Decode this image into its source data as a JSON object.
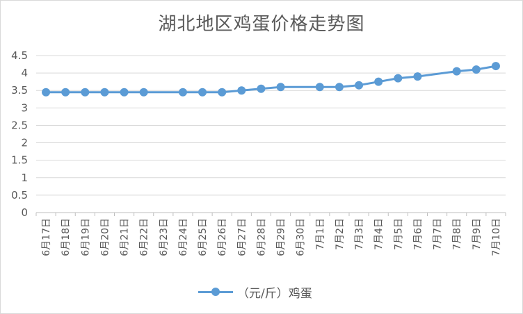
{
  "chart_data": {
    "type": "line",
    "title": "湖北地区鸡蛋价格走势图",
    "categories": [
      "6月17日",
      "6月18日",
      "6月19日",
      "6月20日",
      "6月21日",
      "6月22日",
      "6月23日",
      "6月24日",
      "6月25日",
      "6月26日",
      "6月27日",
      "6月28日",
      "6月29日",
      "6月30日",
      "7月1日",
      "7月2日",
      "7月3日",
      "7月4日",
      "7月5日",
      "7月6日",
      "7月7日",
      "7月8日",
      "7月9日",
      "7月10日"
    ],
    "series": [
      {
        "name": "（元/斤）鸡蛋",
        "color": "#5b9bd5",
        "values": [
          3.45,
          3.45,
          3.45,
          3.45,
          3.45,
          3.45,
          null,
          3.45,
          3.45,
          3.45,
          3.5,
          3.55,
          3.6,
          null,
          3.6,
          3.6,
          3.65,
          3.75,
          3.85,
          3.9,
          null,
          4.05,
          4.1,
          4.2
        ]
      }
    ],
    "yticks": [
      "0",
      "0.5",
      "1",
      "1.5",
      "2",
      "2.5",
      "3",
      "3.5",
      "4",
      "4.5"
    ],
    "ylim": [
      0,
      4.5
    ],
    "grid": true,
    "legend": "bottom"
  }
}
